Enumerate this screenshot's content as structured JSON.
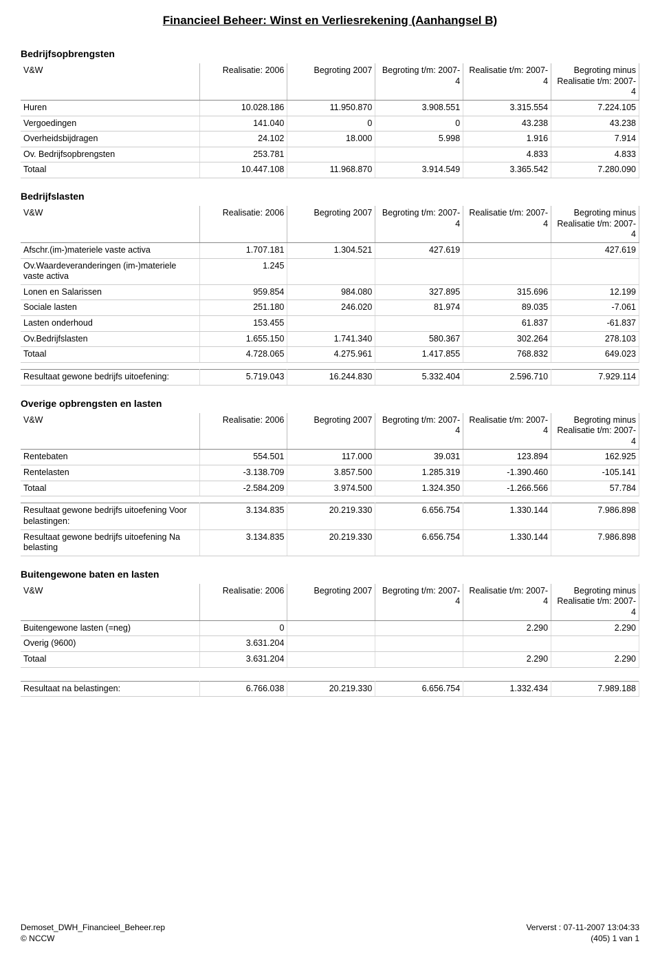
{
  "page_title": "Financieel Beheer: Winst en Verliesrekening (Aanhangsel B)",
  "columns": {
    "vw": "V&W",
    "c1": "Realisatie: 2006",
    "c2": "Begroting 2007",
    "c3": "Begroting t/m: 2007-4",
    "c4": "Realisatie t/m: 2007-4",
    "c5": "Begroting minus Realisatie t/m: 2007-4"
  },
  "sections": {
    "s1": {
      "heading": "Bedrijfsopbrengsten",
      "rows": [
        {
          "label": "Huren",
          "v": [
            "10.028.186",
            "11.950.870",
            "3.908.551",
            "3.315.554",
            "7.224.105"
          ]
        },
        {
          "label": "Vergoedingen",
          "v": [
            "141.040",
            "0",
            "0",
            "43.238",
            "43.238"
          ]
        },
        {
          "label": "Overheidsbijdragen",
          "v": [
            "24.102",
            "18.000",
            "5.998",
            "1.916",
            "7.914"
          ]
        },
        {
          "label": "Ov. Bedrijfsopbrengsten",
          "v": [
            "253.781",
            "",
            "",
            "4.833",
            "4.833"
          ]
        },
        {
          "label": "Totaal",
          "v": [
            "10.447.108",
            "11.968.870",
            "3.914.549",
            "3.365.542",
            "7.280.090"
          ],
          "totaal": true
        }
      ]
    },
    "s2": {
      "heading": "Bedrijfslasten",
      "rows": [
        {
          "label": "Afschr.(im-)materiele vaste activa",
          "v": [
            "1.707.181",
            "1.304.521",
            "427.619",
            "",
            "427.619"
          ]
        },
        {
          "label": "Ov.Waardeveranderingen (im-)materiele vaste activa",
          "v": [
            "1.245",
            "",
            "",
            "",
            ""
          ]
        },
        {
          "label": "Lonen en Salarissen",
          "v": [
            "959.854",
            "984.080",
            "327.895",
            "315.696",
            "12.199"
          ]
        },
        {
          "label": "Sociale lasten",
          "v": [
            "251.180",
            "246.020",
            "81.974",
            "89.035",
            "-7.061"
          ]
        },
        {
          "label": "Lasten onderhoud",
          "v": [
            "153.455",
            "",
            "",
            "61.837",
            "-61.837"
          ]
        },
        {
          "label": "Ov.Bedrijfslasten",
          "v": [
            "1.655.150",
            "1.741.340",
            "580.367",
            "302.264",
            "278.103"
          ]
        },
        {
          "label": "Totaal",
          "v": [
            "4.728.065",
            "4.275.961",
            "1.417.855",
            "768.832",
            "649.023"
          ],
          "totaal": true
        }
      ],
      "after": [
        {
          "label": "Resultaat gewone bedrijfs uitoefening:",
          "v": [
            "5.719.043",
            "16.244.830",
            "5.332.404",
            "2.596.710",
            "7.929.114"
          ]
        }
      ]
    },
    "s3": {
      "heading": "Overige opbrengsten en lasten",
      "rows": [
        {
          "label": "Rentebaten",
          "v": [
            "554.501",
            "117.000",
            "39.031",
            "123.894",
            "162.925"
          ]
        },
        {
          "label": "Rentelasten",
          "v": [
            "-3.138.709",
            "3.857.500",
            "1.285.319",
            "-1.390.460",
            "-105.141"
          ]
        },
        {
          "label": "Totaal",
          "v": [
            "-2.584.209",
            "3.974.500",
            "1.324.350",
            "-1.266.566",
            "57.784"
          ],
          "totaal": true
        }
      ],
      "after": [
        {
          "label": "Resultaat gewone bedrijfs uitoefening Voor belastingen:",
          "v": [
            "3.134.835",
            "20.219.330",
            "6.656.754",
            "1.330.144",
            "7.986.898"
          ]
        },
        {
          "label": "Resultaat gewone bedrijfs uitoefening Na belasting",
          "v": [
            "3.134.835",
            "20.219.330",
            "6.656.754",
            "1.330.144",
            "7.986.898"
          ]
        }
      ]
    },
    "s4": {
      "heading": "Buitengewone baten en lasten",
      "rows": [
        {
          "label": "Buitengewone lasten (=neg)",
          "v": [
            "0",
            "",
            "",
            "2.290",
            "2.290"
          ]
        },
        {
          "label": "Overig (9600)",
          "v": [
            "3.631.204",
            "",
            "",
            "",
            ""
          ]
        },
        {
          "label": "Totaal",
          "v": [
            "3.631.204",
            "",
            "",
            "2.290",
            "2.290"
          ],
          "totaal": true
        }
      ],
      "after": [
        {
          "label": "Resultaat na belastingen:",
          "v": [
            "6.766.038",
            "20.219.330",
            "6.656.754",
            "1.332.434",
            "7.989.188"
          ]
        }
      ]
    }
  },
  "footer": {
    "left1": "Demoset_DWH_Financieel_Beheer.rep",
    "right1": "Ververst : 07-11-2007   13:04:33",
    "left2": "© NCCW",
    "right2": "(405) 1 van  1"
  }
}
